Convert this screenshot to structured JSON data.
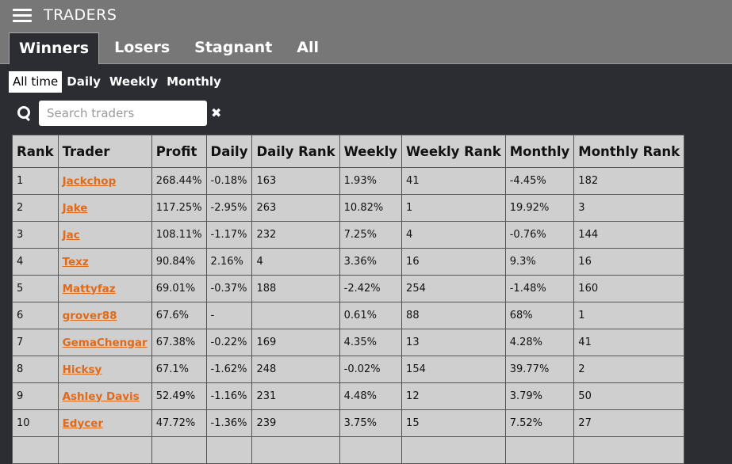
{
  "header": {
    "title": "TRADERS",
    "menu_icon": "hamburger-icon"
  },
  "tabs": [
    {
      "label": "Winners",
      "active": true
    },
    {
      "label": "Losers",
      "active": false
    },
    {
      "label": "Stagnant",
      "active": false
    },
    {
      "label": "All",
      "active": false
    }
  ],
  "periods": [
    {
      "label": "All time",
      "active": true
    },
    {
      "label": "Daily",
      "active": false
    },
    {
      "label": "Weekly",
      "active": false
    },
    {
      "label": "Monthly",
      "active": false
    }
  ],
  "search": {
    "placeholder": "Search traders",
    "value": "",
    "icon": "search-icon",
    "clear_icon": "close-icon"
  },
  "colors": {
    "background": "#2b2d33",
    "topbar": "#777778",
    "table_bg": "#cfcfcf",
    "link": "#e06a1a"
  },
  "table": {
    "columns": [
      "Rank",
      "Trader",
      "Profit",
      "Daily",
      "Daily Rank",
      "Weekly",
      "Weekly Rank",
      "Monthly",
      "Monthly Rank"
    ],
    "rows": [
      [
        "1",
        "Jackchop",
        "268.44%",
        "-0.18%",
        "163",
        "1.93%",
        "41",
        "-4.45%",
        "182"
      ],
      [
        "2",
        "Jake",
        "117.25%",
        "-2.95%",
        "263",
        "10.82%",
        "1",
        "19.92%",
        "3"
      ],
      [
        "3",
        "Jac",
        "108.11%",
        "-1.17%",
        "232",
        "7.25%",
        "4",
        "-0.76%",
        "144"
      ],
      [
        "4",
        "Texz",
        "90.84%",
        "2.16%",
        "4",
        "3.36%",
        "16",
        "9.3%",
        "16"
      ],
      [
        "5",
        "Mattyfaz",
        "69.01%",
        "-0.37%",
        "188",
        "-2.42%",
        "254",
        "-1.48%",
        "160"
      ],
      [
        "6",
        "grover88",
        "67.6%",
        "-",
        "",
        "0.61%",
        "88",
        "68%",
        "1"
      ],
      [
        "7",
        "GemaChengar",
        "67.38%",
        "-0.22%",
        "169",
        "4.35%",
        "13",
        "4.28%",
        "41"
      ],
      [
        "8",
        "Hicksy",
        "67.1%",
        "-1.62%",
        "248",
        "-0.02%",
        "154",
        "39.77%",
        "2"
      ],
      [
        "9",
        "Ashley Davis",
        "52.49%",
        "-1.16%",
        "231",
        "4.48%",
        "12",
        "3.79%",
        "50"
      ],
      [
        "10",
        "Edycer",
        "47.72%",
        "-1.36%",
        "239",
        "3.75%",
        "15",
        "7.52%",
        "27"
      ],
      [
        "",
        "",
        "",
        "",
        "",
        "",
        "",
        "",
        ""
      ]
    ]
  }
}
